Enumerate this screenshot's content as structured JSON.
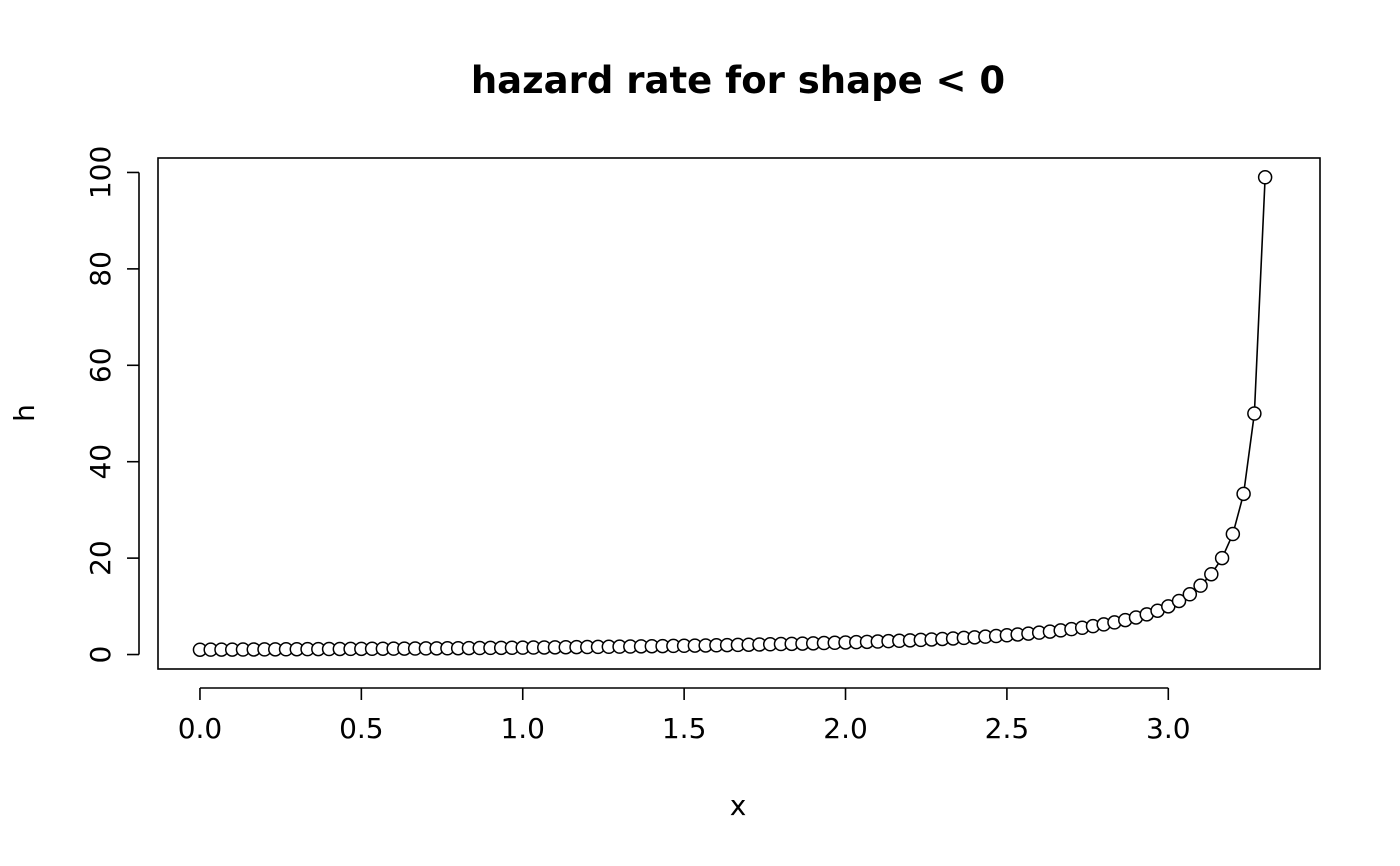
{
  "chart_data": {
    "type": "line",
    "title": "hazard rate for shape < 0",
    "xlabel": "x",
    "ylabel": "h",
    "xlim": [
      -0.13,
      3.47
    ],
    "ylim": [
      -3,
      103
    ],
    "x_ticks": [
      0.0,
      0.5,
      1.0,
      1.5,
      2.0,
      2.5,
      3.0
    ],
    "x_tick_labels": [
      "0.0",
      "0.5",
      "1.0",
      "1.5",
      "2.0",
      "2.5",
      "3.0"
    ],
    "y_ticks": [
      0,
      20,
      40,
      60,
      80,
      100
    ],
    "y_tick_labels": [
      "0",
      "20",
      "40",
      "60",
      "80",
      "100"
    ],
    "grid": false,
    "legend": "none",
    "marker": "open-circle",
    "series": [
      {
        "x": [
          0.0,
          0.0333,
          0.0667,
          0.1,
          0.1333,
          0.1667,
          0.2,
          0.2333,
          0.2667,
          0.3,
          0.3333,
          0.3667,
          0.4,
          0.4333,
          0.4667,
          0.5,
          0.5333,
          0.5667,
          0.6,
          0.6333,
          0.6667,
          0.7,
          0.7333,
          0.7667,
          0.8,
          0.8333,
          0.8667,
          0.9,
          0.9333,
          0.9667,
          1.0,
          1.0333,
          1.0667,
          1.1,
          1.1333,
          1.1667,
          1.2,
          1.2333,
          1.2667,
          1.3,
          1.3333,
          1.3667,
          1.4,
          1.4333,
          1.4667,
          1.5,
          1.5333,
          1.5667,
          1.6,
          1.6333,
          1.6667,
          1.7,
          1.7333,
          1.7667,
          1.8,
          1.8333,
          1.8667,
          1.9,
          1.9333,
          1.9667,
          2.0,
          2.0333,
          2.0667,
          2.1,
          2.1333,
          2.1667,
          2.2,
          2.2333,
          2.2667,
          2.3,
          2.3333,
          2.3667,
          2.4,
          2.4333,
          2.4667,
          2.5,
          2.5333,
          2.5667,
          2.6,
          2.6333,
          2.6667,
          2.7,
          2.7333,
          2.7667,
          2.8,
          2.8333,
          2.8667,
          2.9,
          2.9333,
          2.9667,
          3.0,
          3.0333,
          3.0667,
          3.1,
          3.1333,
          3.1667,
          3.2,
          3.2333,
          3.2667,
          3.3
        ],
        "y": [
          1.0,
          1.01,
          1.02,
          1.03,
          1.04,
          1.053,
          1.064,
          1.075,
          1.087,
          1.099,
          1.111,
          1.124,
          1.136,
          1.15,
          1.163,
          1.176,
          1.191,
          1.205,
          1.22,
          1.235,
          1.25,
          1.266,
          1.282,
          1.299,
          1.316,
          1.333,
          1.351,
          1.37,
          1.389,
          1.408,
          1.429,
          1.449,
          1.471,
          1.493,
          1.515,
          1.538,
          1.563,
          1.587,
          1.613,
          1.639,
          1.667,
          1.695,
          1.724,
          1.754,
          1.786,
          1.818,
          1.852,
          1.887,
          1.923,
          1.961,
          2.0,
          2.041,
          2.083,
          2.128,
          2.174,
          2.222,
          2.273,
          2.326,
          2.381,
          2.439,
          2.5,
          2.564,
          2.632,
          2.703,
          2.778,
          2.857,
          2.941,
          3.03,
          3.125,
          3.226,
          3.333,
          3.448,
          3.571,
          3.704,
          3.846,
          4.0,
          4.167,
          4.348,
          4.545,
          4.762,
          5.0,
          5.263,
          5.556,
          5.882,
          6.25,
          6.667,
          7.143,
          7.692,
          8.333,
          9.091,
          10.0,
          11.111,
          12.5,
          14.286,
          16.667,
          20.0,
          25.0,
          33.333,
          50.0,
          99.0
        ]
      }
    ]
  }
}
